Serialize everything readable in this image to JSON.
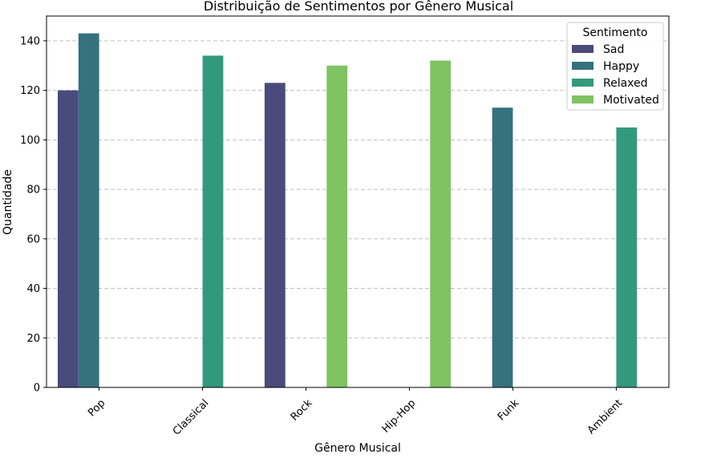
{
  "chart_data": {
    "type": "bar",
    "title": "Distribuição de Sentimentos por Gênero Musical",
    "xlabel": "Gênero Musical",
    "ylabel": "Quantidade",
    "ylim": [
      0,
      150
    ],
    "yticks": [
      0,
      20,
      40,
      60,
      80,
      100,
      120,
      140
    ],
    "grid": true,
    "categories": [
      "Pop",
      "Classical",
      "Rock",
      "Hip-Hop",
      "Funk",
      "Ambient"
    ],
    "legend": {
      "title": "Sentimento",
      "placement": "top-right"
    },
    "series": [
      {
        "name": "Sad",
        "color": "#4a4a7d",
        "values": [
          120,
          null,
          123,
          null,
          null,
          null
        ]
      },
      {
        "name": "Happy",
        "color": "#35717f",
        "values": [
          143,
          null,
          null,
          null,
          113,
          null
        ]
      },
      {
        "name": "Relaxed",
        "color": "#33997c",
        "values": [
          null,
          134,
          null,
          null,
          null,
          105
        ]
      },
      {
        "name": "Motivated",
        "color": "#7fc362",
        "values": [
          null,
          null,
          130,
          132,
          null,
          null
        ]
      }
    ]
  }
}
